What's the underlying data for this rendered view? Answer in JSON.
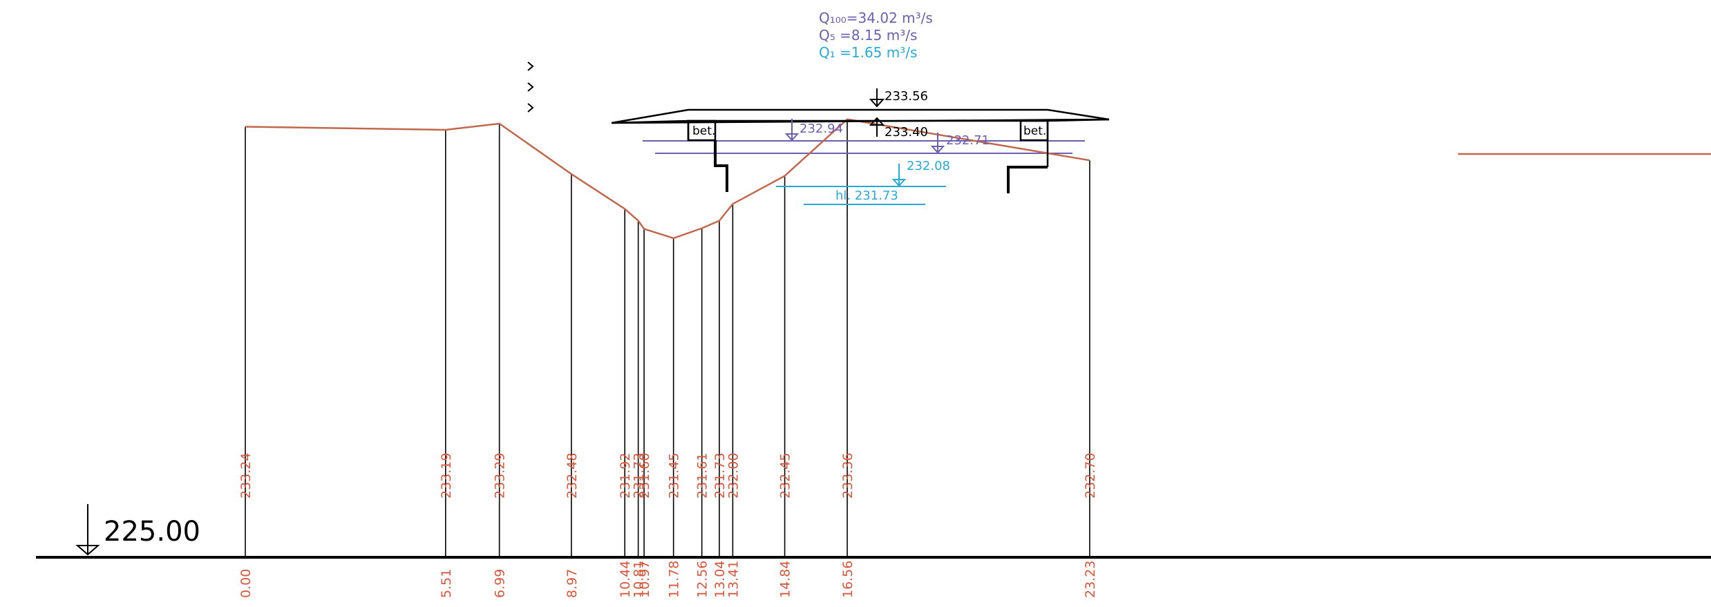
{
  "colors": {
    "terrain": "#c0674c",
    "label_red": "#d6573b",
    "structure": "#000000",
    "q100": "#6a5fb0",
    "q5": "#6a5fb0",
    "q1": "#27a9d8"
  },
  "datum": {
    "elevation": "225.00"
  },
  "discharges": {
    "q100": "Q₁₀₀=34.02 m³/s",
    "q5": "Q₅ =8.15 m³/s",
    "q1": "Q₁ =1.65 m³/s"
  },
  "levels": {
    "bridge_top": "233.56",
    "bridge_soffit": "233.40",
    "q100_left": "232.94",
    "q100_right": "232.71",
    "q5": "232.08",
    "q1": "hl. 231.73"
  },
  "abutment_label": "bet.",
  "stations": [
    {
      "station": 0.0,
      "elevation": 233.24,
      "station_label": "0.00",
      "elevation_label": "233.24"
    },
    {
      "station": 5.51,
      "elevation": 233.19,
      "station_label": "5.51",
      "elevation_label": "233.19"
    },
    {
      "station": 6.99,
      "elevation": 233.29,
      "station_label": "6.99",
      "elevation_label": "233.29"
    },
    {
      "station": 8.97,
      "elevation": 232.48,
      "station_label": "8.97",
      "elevation_label": "232.48"
    },
    {
      "station": 10.44,
      "elevation": 231.92,
      "station_label": "10.44",
      "elevation_label": "231.92"
    },
    {
      "station": 10.81,
      "elevation": 231.73,
      "station_label": "10.81",
      "elevation_label": "231.73"
    },
    {
      "station": 10.97,
      "elevation": 231.6,
      "station_label": "10.97",
      "elevation_label": "231.60"
    },
    {
      "station": 11.78,
      "elevation": 231.45,
      "station_label": "11.78",
      "elevation_label": "231.45"
    },
    {
      "station": 12.56,
      "elevation": 231.61,
      "station_label": "12.56",
      "elevation_label": "231.61"
    },
    {
      "station": 13.04,
      "elevation": 231.73,
      "station_label": "13.04",
      "elevation_label": "231.73"
    },
    {
      "station": 13.41,
      "elevation": 232.0,
      "station_label": "13.41",
      "elevation_label": "232.00"
    },
    {
      "station": 14.84,
      "elevation": 232.45,
      "station_label": "14.84",
      "elevation_label": "232.45"
    },
    {
      "station": 16.56,
      "elevation": 233.36,
      "station_label": "16.56",
      "elevation_label": "233.36"
    },
    {
      "station": 23.23,
      "elevation": 232.7,
      "station_label": "23.23",
      "elevation_label": "232.70"
    }
  ]
}
